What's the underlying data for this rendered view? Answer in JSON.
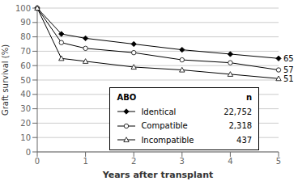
{
  "chart_data": {
    "type": "line",
    "xlabel": "Years after transplant",
    "ylabel": "Graft survival (%)",
    "x": [
      0,
      0.5,
      1,
      2,
      3,
      4,
      5
    ],
    "series": [
      {
        "name": "Identical",
        "n": "22,752",
        "color": "#000000",
        "marker": "diamond",
        "marker_fill": "#000000",
        "values": [
          100,
          82,
          79,
          75,
          71,
          68,
          65
        ],
        "end_label": "65"
      },
      {
        "name": "Compatible",
        "n": "2,318",
        "color": "#000000",
        "marker": "circle",
        "marker_fill": "#ffffff",
        "values": [
          100,
          76,
          72,
          69,
          64,
          62,
          57
        ],
        "end_label": "57"
      },
      {
        "name": "Incompatible",
        "n": "437",
        "color": "#000000",
        "marker": "triangle",
        "marker_fill": "#ffffff",
        "values": [
          100,
          65,
          63,
          59,
          57,
          54,
          51
        ],
        "end_label": "51"
      }
    ],
    "xlim": [
      0,
      5
    ],
    "ylim": [
      0,
      100
    ],
    "xticks": [
      0,
      1,
      2,
      3,
      4,
      5
    ],
    "yticks": [
      0,
      10,
      20,
      30,
      40,
      50,
      60,
      70,
      80,
      90,
      100
    ],
    "grid": "y",
    "legend_title": "ABO",
    "legend_n_header": "n"
  }
}
